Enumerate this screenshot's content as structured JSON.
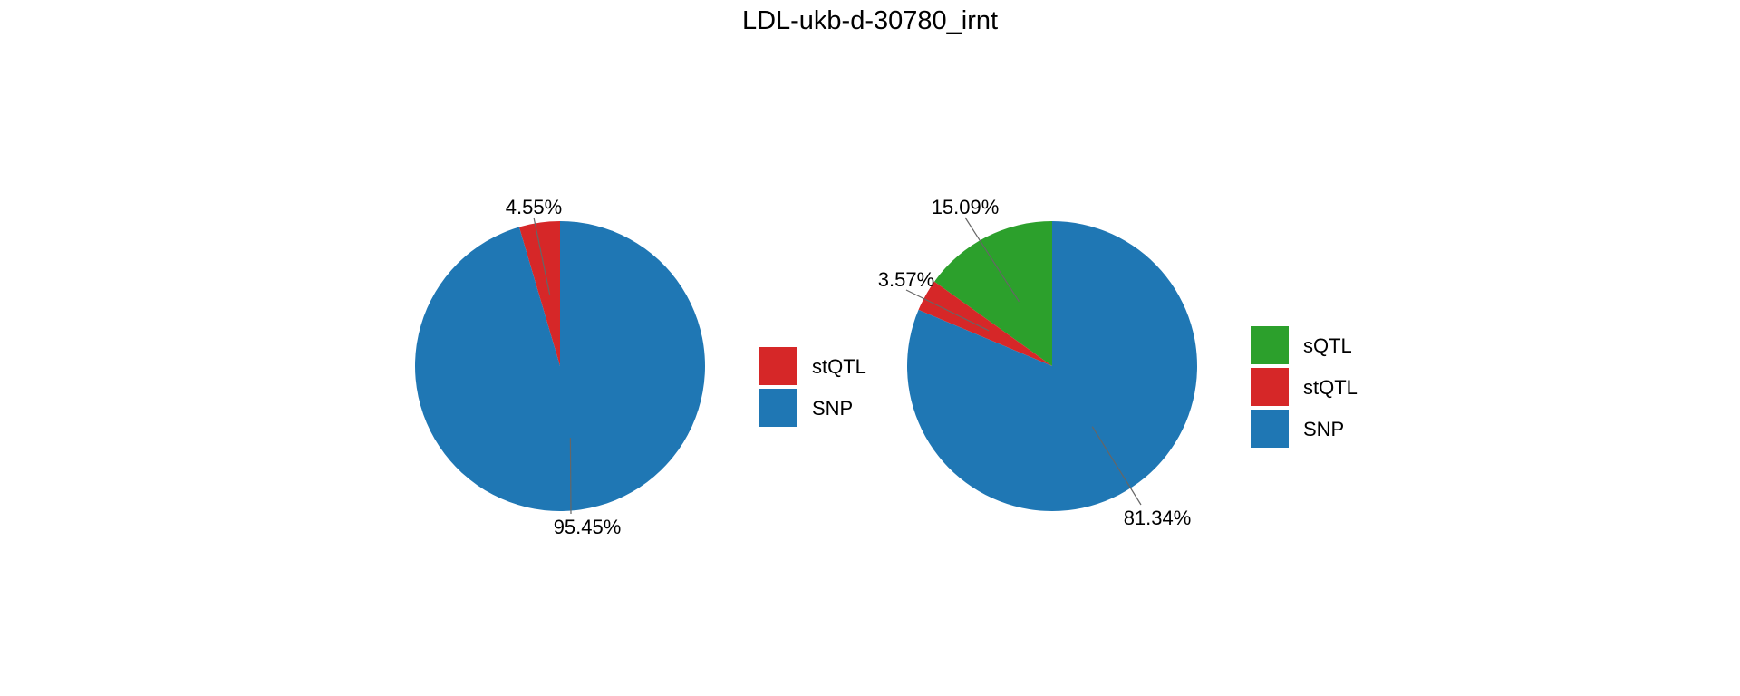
{
  "chart_data": [
    {
      "type": "pie",
      "title": "LDL-ukb-d-30780_irnt",
      "legend": "right",
      "slices": [
        {
          "name": "stQTL",
          "value": 4.55,
          "label": "4.55%",
          "color": "#d62728"
        },
        {
          "name": "SNP",
          "value": 95.45,
          "label": "95.45%",
          "color": "#1f77b4"
        }
      ]
    },
    {
      "type": "pie",
      "legend": "right",
      "slices": [
        {
          "name": "sQTL",
          "value": 15.09,
          "label": "15.09%",
          "color": "#2ca02c"
        },
        {
          "name": "stQTL",
          "value": 3.57,
          "label": "3.57%",
          "color": "#d62728"
        },
        {
          "name": "SNP",
          "value": 81.34,
          "label": "81.34%",
          "color": "#1f77b4"
        }
      ]
    }
  ]
}
